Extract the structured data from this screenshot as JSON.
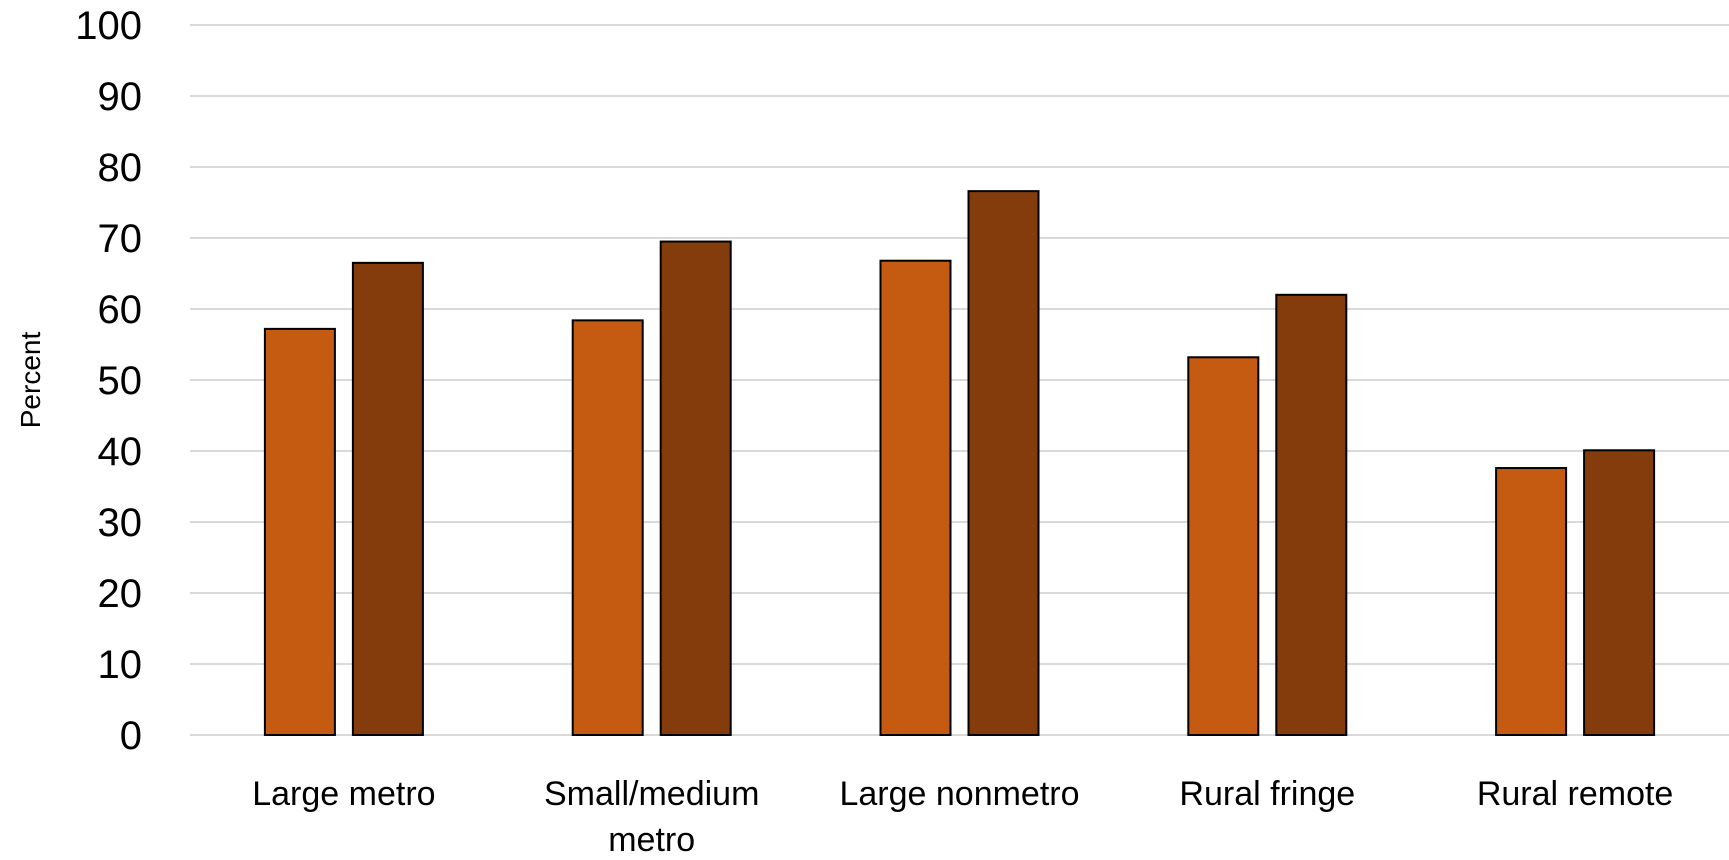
{
  "chart_data": {
    "type": "bar",
    "categories": [
      "Large metro",
      "Small/medium metro",
      "Large nonmetro",
      "Rural fringe",
      "Rural remote"
    ],
    "series": [
      {
        "values": [
          57.2,
          58.4,
          66.8,
          53.2,
          37.6
        ],
        "color": "#c55a11"
      },
      {
        "values": [
          66.5,
          69.5,
          76.6,
          62.0,
          40.1
        ],
        "color": "#843c0c"
      }
    ],
    "title": "",
    "xlabel": "",
    "ylabel": "Percent",
    "ylim": [
      0,
      100
    ],
    "yticks": [
      "0",
      "10",
      "20",
      "30",
      "40",
      "50",
      "60",
      "70",
      "80",
      "90",
      "100"
    ],
    "grid": true,
    "legend": "none"
  }
}
